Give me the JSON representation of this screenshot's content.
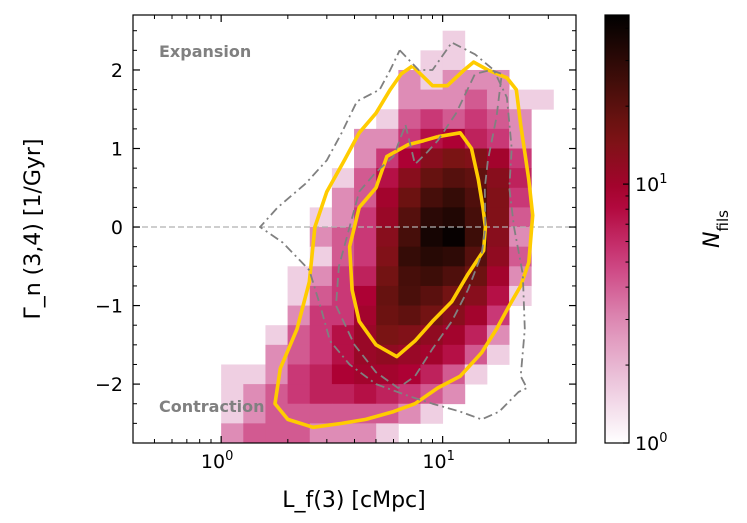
{
  "chart_data": {
    "type": "heatmap",
    "title": "",
    "xlabel": "L_f(3)  [cMpc]",
    "ylabel": "Γ_n (3,4)  [1/Gyr]",
    "xscale": "log",
    "xlim": [
      0.4,
      40
    ],
    "ylim": [
      -2.75,
      2.7
    ],
    "xticks": [
      {
        "value": 1,
        "base": "10",
        "exp": "0"
      },
      {
        "value": 10,
        "base": "10",
        "exp": "1"
      }
    ],
    "yticks": [
      {
        "value": 2,
        "label": "2"
      },
      {
        "value": 1,
        "label": "1"
      },
      {
        "value": 0,
        "label": "0"
      },
      {
        "value": -1,
        "label": "−1"
      },
      {
        "value": -2,
        "label": "−2"
      }
    ],
    "colorbar": {
      "label_main": "N",
      "label_sub": "fils",
      "scale": "log",
      "range": [
        1,
        45
      ],
      "ticks": [
        {
          "value": 1,
          "base": "10",
          "exp": "0"
        },
        {
          "value": 10,
          "base": "10",
          "exp": "1"
        }
      ],
      "colormap": [
        "#ffffff",
        "#ecc6dc",
        "#dd8ab4",
        "#cc3d7c",
        "#ad0033",
        "#7a1414",
        "#3c0d08",
        "#000000"
      ]
    },
    "annotations": {
      "top": "Expansion",
      "bottom": "Contraction"
    },
    "reference_line": {
      "y": 0,
      "color": "#b0b0b0"
    },
    "bins": {
      "x_edges_log10": [
        0.0,
        0.1,
        0.2,
        0.3,
        0.4,
        0.5,
        0.6,
        0.7,
        0.8,
        0.9,
        1.0,
        1.1,
        1.2,
        1.3,
        1.4,
        1.5
      ],
      "y_edges": [
        2.5,
        2.25,
        2.0,
        1.75,
        1.5,
        1.25,
        1.0,
        0.75,
        0.5,
        0.25,
        0.0,
        -0.25,
        -0.5,
        -0.75,
        -1.0,
        -1.25,
        -1.5,
        -1.75,
        -2.0,
        -2.25,
        -2.5,
        -2.75
      ],
      "counts": [
        [
          0,
          0,
          0,
          0,
          0,
          0,
          0,
          0,
          0,
          0,
          1,
          0,
          0,
          0,
          0
        ],
        [
          0,
          0,
          0,
          0,
          0,
          0,
          0,
          0,
          0,
          1,
          1,
          0,
          0,
          0,
          0
        ],
        [
          0,
          0,
          0,
          0,
          0,
          0,
          0,
          0,
          2,
          1,
          2,
          2,
          2,
          0,
          0
        ],
        [
          0,
          0,
          0,
          0,
          0,
          0,
          0,
          0,
          2,
          2,
          2,
          3,
          2,
          1,
          1
        ],
        [
          0,
          0,
          0,
          0,
          0,
          0,
          0,
          1,
          3,
          4,
          3,
          4,
          3,
          2,
          0
        ],
        [
          0,
          0,
          0,
          0,
          0,
          0,
          2,
          2,
          4,
          6,
          7,
          5,
          4,
          2,
          0
        ],
        [
          0,
          0,
          0,
          0,
          0,
          0,
          2,
          4,
          7,
          11,
          13,
          12,
          8,
          4,
          0
        ],
        [
          0,
          0,
          0,
          0,
          0,
          1,
          3,
          6,
          11,
          16,
          19,
          17,
          11,
          5,
          0
        ],
        [
          0,
          0,
          0,
          0,
          0,
          2,
          3,
          8,
          15,
          22,
          26,
          20,
          12,
          4,
          0
        ],
        [
          0,
          0,
          0,
          0,
          1,
          2,
          4,
          9,
          19,
          29,
          32,
          22,
          12,
          3,
          0
        ],
        [
          0,
          0,
          0,
          0,
          2,
          3,
          4,
          11,
          22,
          36,
          42,
          24,
          11,
          2,
          0
        ],
        [
          0,
          0,
          0,
          0,
          1,
          3,
          4,
          12,
          26,
          30,
          28,
          19,
          10,
          3,
          0
        ],
        [
          0,
          0,
          0,
          1,
          2,
          4,
          5,
          14,
          22,
          24,
          20,
          15,
          8,
          2,
          0
        ],
        [
          0,
          0,
          0,
          1,
          3,
          4,
          7,
          16,
          21,
          18,
          14,
          11,
          6,
          1,
          0
        ],
        [
          0,
          0,
          0,
          2,
          4,
          4,
          8,
          15,
          17,
          14,
          11,
          8,
          4,
          0,
          0
        ],
        [
          0,
          0,
          1,
          3,
          4,
          6,
          9,
          13,
          12,
          10,
          8,
          5,
          2,
          0,
          0
        ],
        [
          0,
          0,
          2,
          3,
          4,
          6,
          9,
          10,
          9,
          8,
          6,
          3,
          1,
          0,
          0
        ],
        [
          1,
          1,
          2,
          4,
          5,
          7,
          8,
          8,
          7,
          5,
          3,
          1,
          0,
          0,
          0
        ],
        [
          1,
          2,
          3,
          4,
          5,
          5,
          6,
          5,
          4,
          3,
          2,
          0,
          0,
          0,
          0
        ],
        [
          1,
          2,
          3,
          3,
          3,
          3,
          3,
          3,
          2,
          1,
          0,
          0,
          0,
          0,
          0
        ],
        [
          2,
          3,
          3,
          3,
          2,
          2,
          2,
          1,
          0,
          0,
          0,
          0,
          0,
          0,
          0
        ]
      ]
    },
    "contours": [
      {
        "name": "gold inner contour",
        "style": "solid",
        "color": "#ffcc00",
        "points": [
          [
            9.5,
            1.15
          ],
          [
            12.0,
            1.2
          ],
          [
            13.5,
            1.0
          ],
          [
            14.5,
            0.6
          ],
          [
            15.2,
            0.25
          ],
          [
            15.6,
            0.0
          ],
          [
            15.3,
            -0.3
          ],
          [
            13.0,
            -0.6
          ],
          [
            11.0,
            -0.95
          ],
          [
            9.0,
            -1.2
          ],
          [
            7.5,
            -1.45
          ],
          [
            6.2,
            -1.65
          ],
          [
            5.0,
            -1.5
          ],
          [
            4.2,
            -1.2
          ],
          [
            3.9,
            -0.8
          ],
          [
            3.8,
            -0.25
          ],
          [
            4.2,
            0.25
          ],
          [
            5.0,
            0.5
          ],
          [
            5.6,
            0.9
          ],
          [
            7.0,
            1.05
          ],
          [
            8.2,
            1.1
          ],
          [
            9.5,
            1.15
          ]
        ]
      },
      {
        "name": "gold outer contour",
        "style": "solid",
        "color": "#ffcc00",
        "points": [
          [
            7.3,
            2.05
          ],
          [
            9.0,
            1.8
          ],
          [
            10.5,
            1.8
          ],
          [
            12.5,
            2.0
          ],
          [
            13.8,
            2.1
          ],
          [
            16.0,
            2.0
          ],
          [
            19.5,
            1.9
          ],
          [
            21.5,
            1.75
          ],
          [
            22.5,
            1.3
          ],
          [
            23.5,
            0.95
          ],
          [
            24.5,
            0.6
          ],
          [
            25.5,
            0.15
          ],
          [
            24.5,
            -0.45
          ],
          [
            22.5,
            -0.75
          ],
          [
            20.0,
            -1.0
          ],
          [
            17.5,
            -1.3
          ],
          [
            15.0,
            -1.6
          ],
          [
            12.0,
            -1.9
          ],
          [
            9.5,
            -2.05
          ],
          [
            7.5,
            -2.25
          ],
          [
            6.0,
            -2.35
          ],
          [
            4.5,
            -2.45
          ],
          [
            3.5,
            -2.5
          ],
          [
            2.6,
            -2.55
          ],
          [
            2.0,
            -2.45
          ],
          [
            1.75,
            -2.25
          ],
          [
            1.85,
            -1.8
          ],
          [
            2.2,
            -1.3
          ],
          [
            2.5,
            -0.7
          ],
          [
            2.65,
            0.0
          ],
          [
            3.0,
            0.45
          ],
          [
            3.6,
            0.85
          ],
          [
            4.2,
            1.2
          ],
          [
            5.0,
            1.45
          ],
          [
            5.8,
            1.75
          ],
          [
            6.5,
            1.95
          ],
          [
            7.3,
            2.05
          ]
        ]
      },
      {
        "name": "grey dash-dot contour",
        "style": "dashdot",
        "color": "#808080",
        "points": [
          [
            6.4,
            2.25
          ],
          [
            7.8,
            2.0
          ],
          [
            9.0,
            2.0
          ],
          [
            11.0,
            2.35
          ],
          [
            14.0,
            2.2
          ],
          [
            17.0,
            2.0
          ],
          [
            19.5,
            1.65
          ],
          [
            20.5,
            1.0
          ],
          [
            20.0,
            0.5
          ],
          [
            21.0,
            0.0
          ],
          [
            23.0,
            -0.6
          ],
          [
            23.5,
            -1.3
          ],
          [
            22.5,
            -1.9
          ],
          [
            24.0,
            -2.05
          ],
          [
            22.0,
            -2.1
          ],
          [
            18.0,
            -2.35
          ],
          [
            15.0,
            -2.45
          ],
          [
            12.0,
            -2.35
          ],
          [
            9.0,
            -2.25
          ],
          [
            7.0,
            -2.15
          ],
          [
            5.0,
            -2.0
          ],
          [
            3.8,
            -1.75
          ],
          [
            3.1,
            -1.45
          ],
          [
            2.8,
            -1.0
          ],
          [
            2.5,
            -0.55
          ],
          [
            1.9,
            -0.2
          ],
          [
            1.5,
            0.0
          ],
          [
            1.8,
            0.25
          ],
          [
            2.4,
            0.55
          ],
          [
            3.0,
            0.85
          ],
          [
            3.5,
            1.2
          ],
          [
            4.1,
            1.6
          ],
          [
            5.2,
            1.75
          ],
          [
            5.8,
            2.0
          ],
          [
            6.4,
            2.25
          ]
        ]
      },
      {
        "name": "grey dashed contour",
        "style": "dashed",
        "color": "#808080",
        "points": [
          [
            6.8,
            1.3
          ],
          [
            7.5,
            0.8
          ],
          [
            8.5,
            0.95
          ],
          [
            9.5,
            1.1
          ],
          [
            11.5,
            1.45
          ],
          [
            14.0,
            1.95
          ],
          [
            16.5,
            2.0
          ],
          [
            18.5,
            1.95
          ],
          [
            17.5,
            1.4
          ],
          [
            16.0,
            0.85
          ],
          [
            15.5,
            0.5
          ],
          [
            15.6,
            0.0
          ],
          [
            15.0,
            -0.35
          ],
          [
            13.0,
            -0.8
          ],
          [
            11.0,
            -1.2
          ],
          [
            9.0,
            -1.55
          ],
          [
            7.5,
            -1.9
          ],
          [
            6.3,
            -2.05
          ],
          [
            5.0,
            -1.85
          ],
          [
            4.0,
            -1.5
          ],
          [
            3.3,
            -1.0
          ],
          [
            3.4,
            -0.5
          ],
          [
            3.8,
            0.0
          ],
          [
            4.2,
            0.45
          ],
          [
            5.0,
            0.7
          ],
          [
            6.0,
            0.9
          ],
          [
            6.8,
            1.3
          ]
        ]
      }
    ]
  }
}
